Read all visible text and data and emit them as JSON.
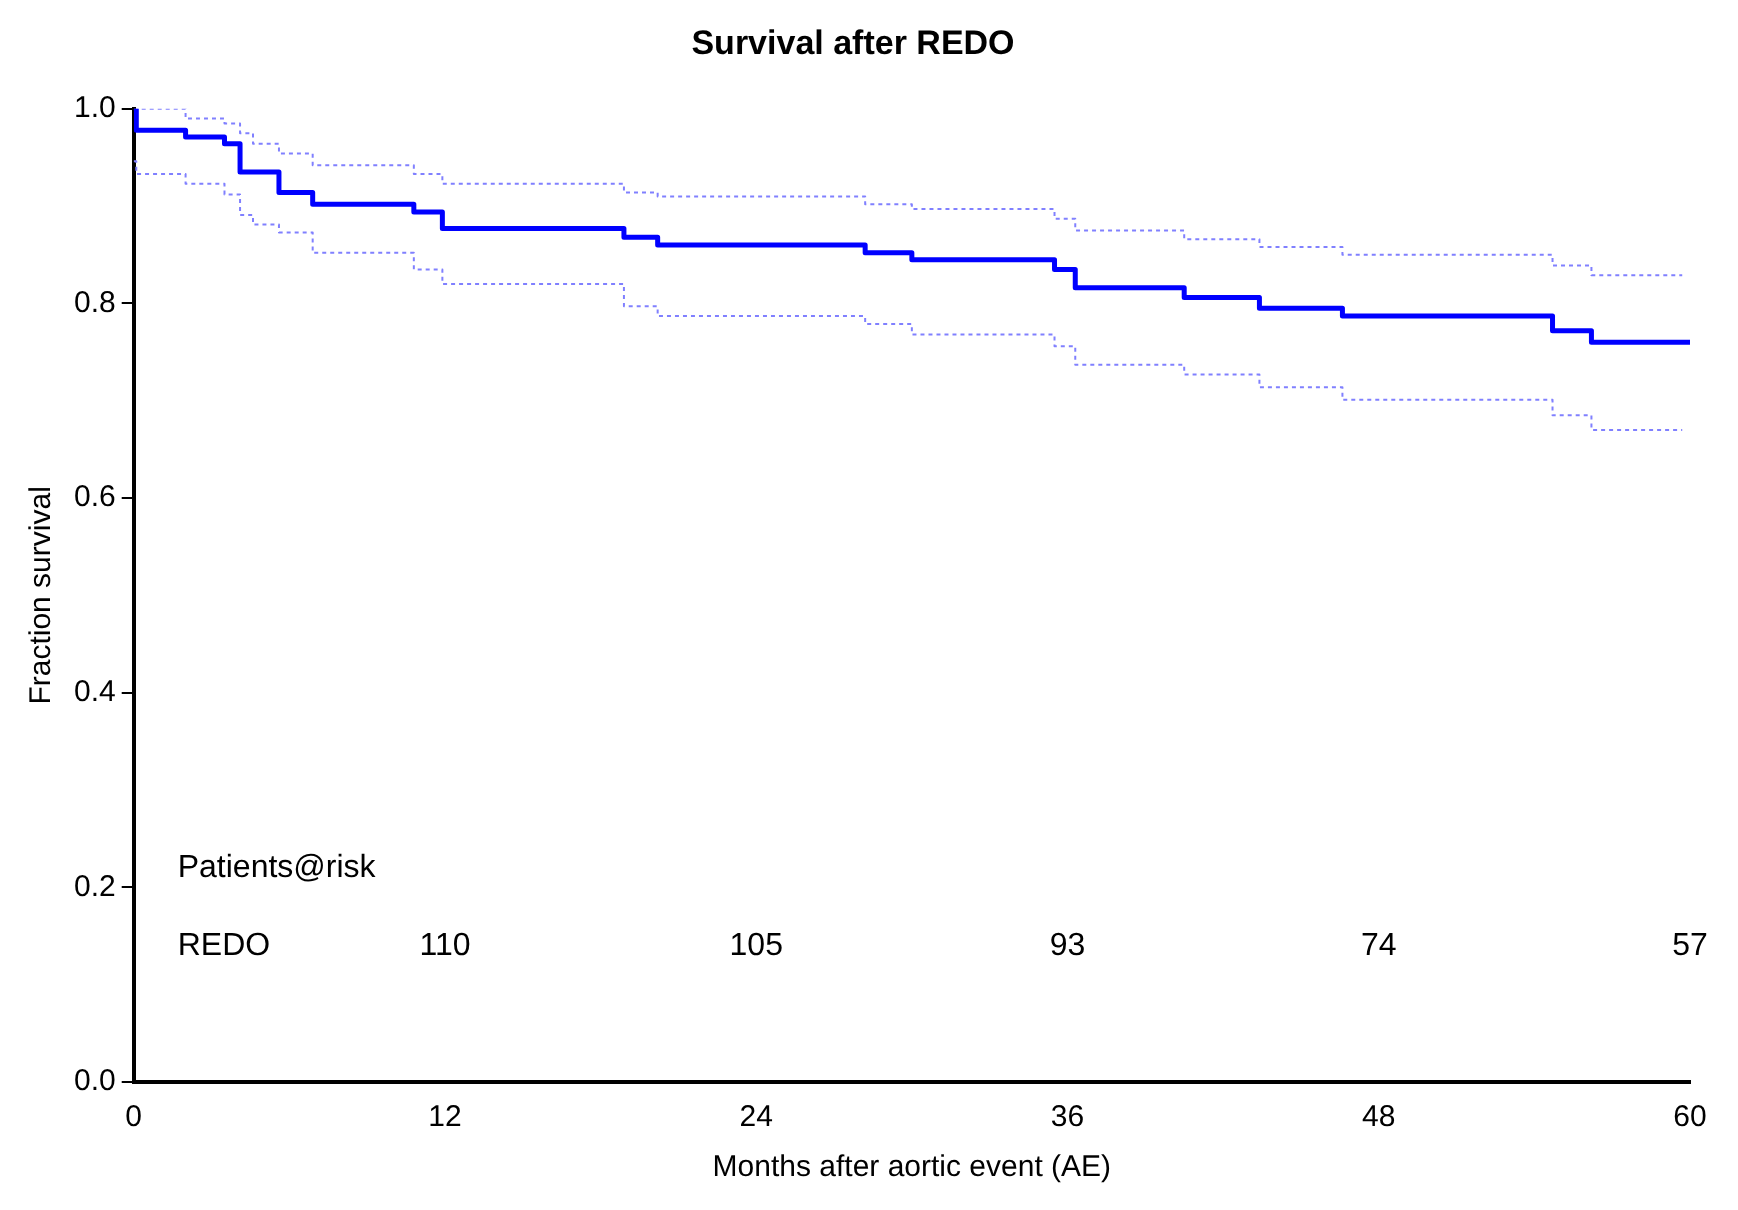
{
  "chart_data": {
    "type": "step",
    "title": "Survival after REDO",
    "xlabel": "Months after aortic event (AE)",
    "ylabel": "Fraction survival",
    "series": [
      {
        "color": "#0000ff",
        "line_style": "solid",
        "x": [
          0,
          0.1,
          2.0,
          3.5,
          4.1,
          5.6,
          6.9,
          10.8,
          11.9,
          18.9,
          20.2,
          28.2,
          30.0,
          35.5,
          36.3,
          40.5,
          43.4,
          46.6,
          54.7,
          56.2,
          60
        ],
        "values": [
          1.0,
          0.978,
          0.971,
          0.964,
          0.935,
          0.914,
          0.902,
          0.894,
          0.877,
          0.868,
          0.86,
          0.852,
          0.845,
          0.835,
          0.816,
          0.806,
          0.795,
          0.787,
          0.772,
          0.76,
          0.76
        ]
      },
      {
        "color": "#8080ff",
        "line_style": "dotted",
        "x": [
          0,
          2.0,
          3.5,
          4.1,
          4.6,
          5.6,
          6.9,
          10.8,
          11.9,
          18.9,
          20.2,
          28.2,
          30.0,
          35.5,
          36.3,
          40.5,
          43.4,
          46.6,
          54.7,
          56.2,
          59.7
        ],
        "values": [
          1.0,
          0.99,
          0.985,
          0.975,
          0.964,
          0.954,
          0.942,
          0.933,
          0.923,
          0.914,
          0.91,
          0.902,
          0.897,
          0.887,
          0.875,
          0.866,
          0.858,
          0.85,
          0.839,
          0.829,
          0.829
        ]
      },
      {
        "color": "#8080ff",
        "line_style": "dotted",
        "x": [
          0,
          0.1,
          2.0,
          3.5,
          4.1,
          4.6,
          5.6,
          6.9,
          10.8,
          11.9,
          18.9,
          20.2,
          28.2,
          30.0,
          35.5,
          36.3,
          40.5,
          43.4,
          46.6,
          54.7,
          56.2,
          59.7
        ],
        "values": [
          0.946,
          0.933,
          0.923,
          0.912,
          0.891,
          0.881,
          0.873,
          0.852,
          0.835,
          0.82,
          0.797,
          0.787,
          0.779,
          0.768,
          0.756,
          0.737,
          0.727,
          0.714,
          0.701,
          0.685,
          0.67,
          0.67
        ]
      }
    ],
    "xlim": [
      0,
      60
    ],
    "xticks": [
      0,
      12,
      24,
      36,
      48,
      60
    ],
    "ylim": [
      0,
      1
    ],
    "yticks": [
      {
        "value": 0,
        "label": "0.0"
      },
      {
        "value": 0.2,
        "label": "0.2"
      },
      {
        "value": 0.4,
        "label": "0.4"
      },
      {
        "value": 0.6,
        "label": "0.6"
      },
      {
        "value": 0.8,
        "label": "0.8"
      },
      {
        "value": 1,
        "label": "1.0"
      }
    ],
    "grid": false,
    "legend": false,
    "marker": "none",
    "annotations": [
      "Patients@risk",
      "REDO",
      "110",
      "105",
      "93",
      "74",
      "57"
    ]
  }
}
